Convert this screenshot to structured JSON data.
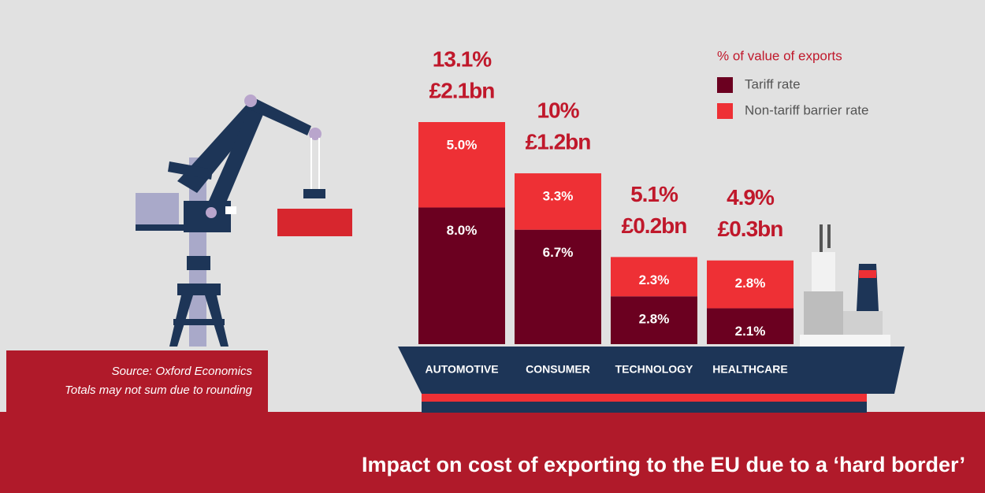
{
  "chart_data": {
    "type": "bar",
    "stacked": true,
    "title": "Impact on cost of exporting to the EU due to a ‘hard border’",
    "legend_title": "% of value of exports",
    "notes": [
      "Source: Oxford Economics",
      "Totals may not sum due to rounding"
    ],
    "categories": [
      "AUTOMOTIVE",
      "CONSUMER",
      "TECHNOLOGY",
      "HEALTHCARE"
    ],
    "series": [
      {
        "name": "Tariff rate",
        "color": "#6b0020",
        "values": [
          8.0,
          6.7,
          2.8,
          2.1
        ],
        "value_labels": [
          "8.0%",
          "6.7%",
          "2.8%",
          "2.1%"
        ]
      },
      {
        "name": "Non-tariff barrier rate",
        "color": "#ee3035",
        "values": [
          5.0,
          3.3,
          2.3,
          2.8
        ],
        "value_labels": [
          "5.0%",
          "3.3%",
          "2.3%",
          "2.8%"
        ]
      }
    ],
    "total_labels": [
      "13.1%",
      "10%",
      "5.1%",
      "4.9%"
    ],
    "cost_labels": [
      "£2.1bn",
      "£1.2bn",
      "£0.2bn",
      "£0.3bn"
    ]
  }
}
